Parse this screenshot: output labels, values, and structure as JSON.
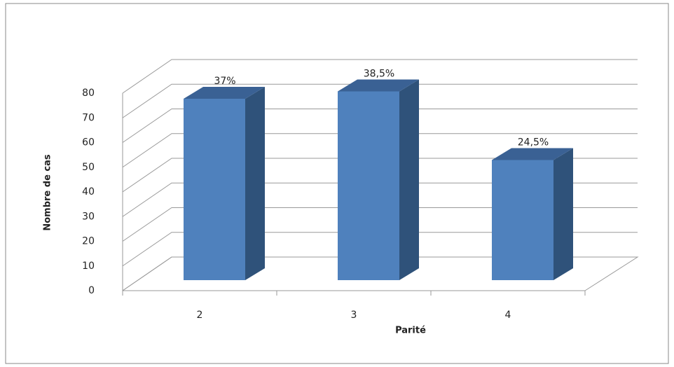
{
  "chart_data": {
    "type": "bar3d",
    "x_label": "Parité",
    "y_label": "Nombre de cas",
    "categories": [
      "2",
      "3",
      "4"
    ],
    "values": [
      74,
      77,
      49
    ],
    "value_labels": [
      "37%",
      "38,5%",
      "24,5%"
    ],
    "color": "#4f81bd",
    "ylim": [
      0,
      80
    ],
    "yticks": [
      0,
      10,
      20,
      30,
      40,
      50,
      60,
      70,
      80
    ],
    "grid": true
  }
}
